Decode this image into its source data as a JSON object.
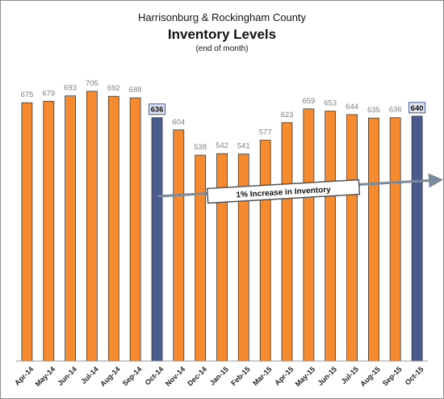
{
  "header": {
    "line1": "Harrisonburg & Rockingham County",
    "line2": "Inventory Levels",
    "line3": "(end of month)"
  },
  "chart_data": {
    "type": "bar",
    "title": "Inventory Levels",
    "subtitle": "Harrisonburg & Rockingham County",
    "note": "(end of month)",
    "categories": [
      "Apr-14",
      "May-14",
      "Jun-14",
      "Jul-14",
      "Aug-14",
      "Sep-14",
      "Oct-14",
      "Nov-14",
      "Dec-14",
      "Jan-15",
      "Feb-15",
      "Mar-15",
      "Apr-15",
      "May-15",
      "Jun-15",
      "Jul-15",
      "Aug-15",
      "Sep-15",
      "Oct-15"
    ],
    "values": [
      675,
      679,
      693,
      705,
      692,
      688,
      636,
      604,
      538,
      542,
      541,
      577,
      623,
      659,
      653,
      644,
      635,
      636,
      640
    ],
    "highlighted": [
      "Oct-14",
      "Oct-15"
    ],
    "ylim": [
      0,
      740
    ],
    "grid": false,
    "colors": {
      "bar": "#f58a2e",
      "highlight": "#4a5b8e",
      "bar_edge": "#3a3a3a"
    },
    "annotation": "1% Increase in Inventory"
  }
}
